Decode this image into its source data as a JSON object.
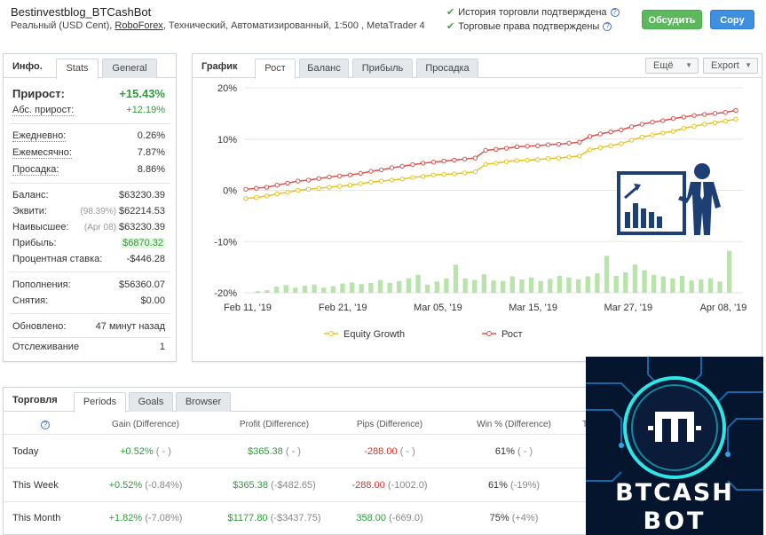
{
  "header": {
    "title": "Bestinvestblog_BTCashBot",
    "sub_prefix": "Реальный (USD Cent),",
    "broker": "RoboForex",
    "sub_suffix": ", Технический, Автоматизированный, 1:500 , MetaTrader 4",
    "verify1": "История торговли подтверждена",
    "verify2": "Торговые права подтверждены",
    "discuss_label": "Обсудить",
    "copy_label": "Copy"
  },
  "info": {
    "tab_title": "Инфо.",
    "tabs": [
      "Stats",
      "General"
    ],
    "gain_label": "Прирост:",
    "gain_value": "+15.43%",
    "abs_label": "Абс. прирост:",
    "abs_value": "+12.19%",
    "daily_label": "Ежедневно:",
    "daily_value": "0.26%",
    "monthly_label": "Ежемесячно:",
    "monthly_value": "7.87%",
    "drawdown_label": "Просадка:",
    "drawdown_value": "8.86%",
    "balance_label": "Баланс:",
    "balance_value": "$63230.39",
    "equity_label": "Эквити:",
    "equity_pct": "(98.39%)",
    "equity_value": "$62214.53",
    "highest_label": "Наивысшее:",
    "highest_date": "(Apr 08)",
    "highest_value": "$63230.39",
    "profit_label": "Прибыль:",
    "profit_value": "$6870.32",
    "interest_label": "Процентная ставка:",
    "interest_value": "-$446.28",
    "deposits_label": "Пополнения:",
    "deposits_value": "$56360.07",
    "withdrawals_label": "Снятия:",
    "withdrawals_value": "$0.00",
    "updated_label": "Обновлено:",
    "updated_value": "47 минут назад",
    "tracking_label": "Отслеживание",
    "tracking_value": "1"
  },
  "chart_panel": {
    "tab_title": "График",
    "tabs": [
      "Рост",
      "Баланс",
      "Прибыль",
      "Просадка"
    ],
    "more_label": "Ещё",
    "export_label": "Export"
  },
  "chart_data": {
    "type": "line",
    "y_ticks": [
      "20%",
      "10%",
      "0%",
      "-10%",
      "-20%"
    ],
    "ylim": [
      -20,
      20
    ],
    "x_ticks": [
      "Feb 11, '19",
      "Feb 21, '19",
      "Mar 05, '19",
      "Mar 15, '19",
      "Mar 27, '19",
      "Apr 08, '19"
    ],
    "series": [
      {
        "name": "Equity Growth",
        "color": "#e8c21c",
        "values": [
          -1.6,
          -1.4,
          -1.1,
          -0.7,
          -0.4,
          0.0,
          0.2,
          0.4,
          0.6,
          0.8,
          1.0,
          1.3,
          1.6,
          1.8,
          2.0,
          2.2,
          2.5,
          2.7,
          3.0,
          3.1,
          3.2,
          3.4,
          3.6,
          5.1,
          5.3,
          5.6,
          5.8,
          5.9,
          6.0,
          6.2,
          6.3,
          6.5,
          6.7,
          7.9,
          8.3,
          8.7,
          9.1,
          9.8,
          10.4,
          10.8,
          11.2,
          11.5,
          12.1,
          12.5,
          12.9,
          13.2,
          13.5,
          13.9
        ]
      },
      {
        "name": "Рост",
        "color": "#d9534f",
        "values": [
          0.2,
          0.4,
          0.6,
          1.0,
          1.4,
          1.8,
          2.0,
          2.3,
          2.6,
          2.8,
          3.0,
          3.3,
          3.7,
          4.0,
          4.4,
          4.7,
          5.0,
          5.3,
          5.5,
          5.7,
          5.9,
          6.1,
          6.3,
          7.8,
          8.0,
          8.2,
          8.5,
          8.6,
          8.7,
          8.9,
          9.0,
          9.2,
          9.4,
          10.5,
          11.0,
          11.4,
          11.8,
          12.4,
          12.9,
          13.3,
          13.6,
          14.0,
          14.3,
          14.6,
          14.8,
          15.0,
          15.2,
          15.6
        ]
      }
    ],
    "bars": [
      0.3,
      0.5,
      1.2,
      1.5,
      1.0,
      1.4,
      1.6,
      1.0,
      1.3,
      1.8,
      2.0,
      1.7,
      1.9,
      2.5,
      1.9,
      2.3,
      2.8,
      3.5,
      1.6,
      2.2,
      2.8,
      5.5,
      2.8,
      2.5,
      3.6,
      2.4,
      2.3,
      3.2,
      2.6,
      3.0,
      2.3,
      2.7,
      3.3,
      3.0,
      2.6,
      3.2,
      3.8,
      7.2,
      3.3,
      4.0,
      5.5,
      4.4,
      3.5,
      3.2,
      2.8,
      3.3,
      2.4,
      2.6,
      2.8,
      2.2,
      8.2
    ]
  },
  "trading": {
    "tab_title": "Торговля",
    "tabs": [
      "Periods",
      "Goals",
      "Browser"
    ],
    "columns": [
      "Gain (Difference)",
      "Profit (Difference)",
      "Pips (Difference)",
      "Win % (Difference)",
      "T"
    ],
    "rows": [
      {
        "period": "Today",
        "gain": "+0.52%",
        "gain_diff": "( - )",
        "profit": "$365.38",
        "profit_diff": "( - )",
        "pips": "-288.00",
        "pips_diff": "( - )",
        "win": "61%",
        "win_diff": "( - )"
      },
      {
        "period": "This Week",
        "gain": "+0.52%",
        "gain_diff": "(-0.84%)",
        "profit": "$365.38",
        "profit_diff": "(-$482.65)",
        "pips": "-288.00",
        "pips_diff": "(-1002.0)",
        "win": "61%",
        "win_diff": "(-19%)"
      },
      {
        "period": "This Month",
        "gain": "+1.82%",
        "gain_diff": "(-7.08%)",
        "profit": "$1177.80",
        "profit_diff": "(-$3437.75)",
        "pips": "358.00",
        "pips_diff": "(-669.0)",
        "win": "75%",
        "win_diff": "(+4%)"
      }
    ]
  },
  "bot_logo": {
    "line1": "BTCASH",
    "line2": "BOT"
  }
}
